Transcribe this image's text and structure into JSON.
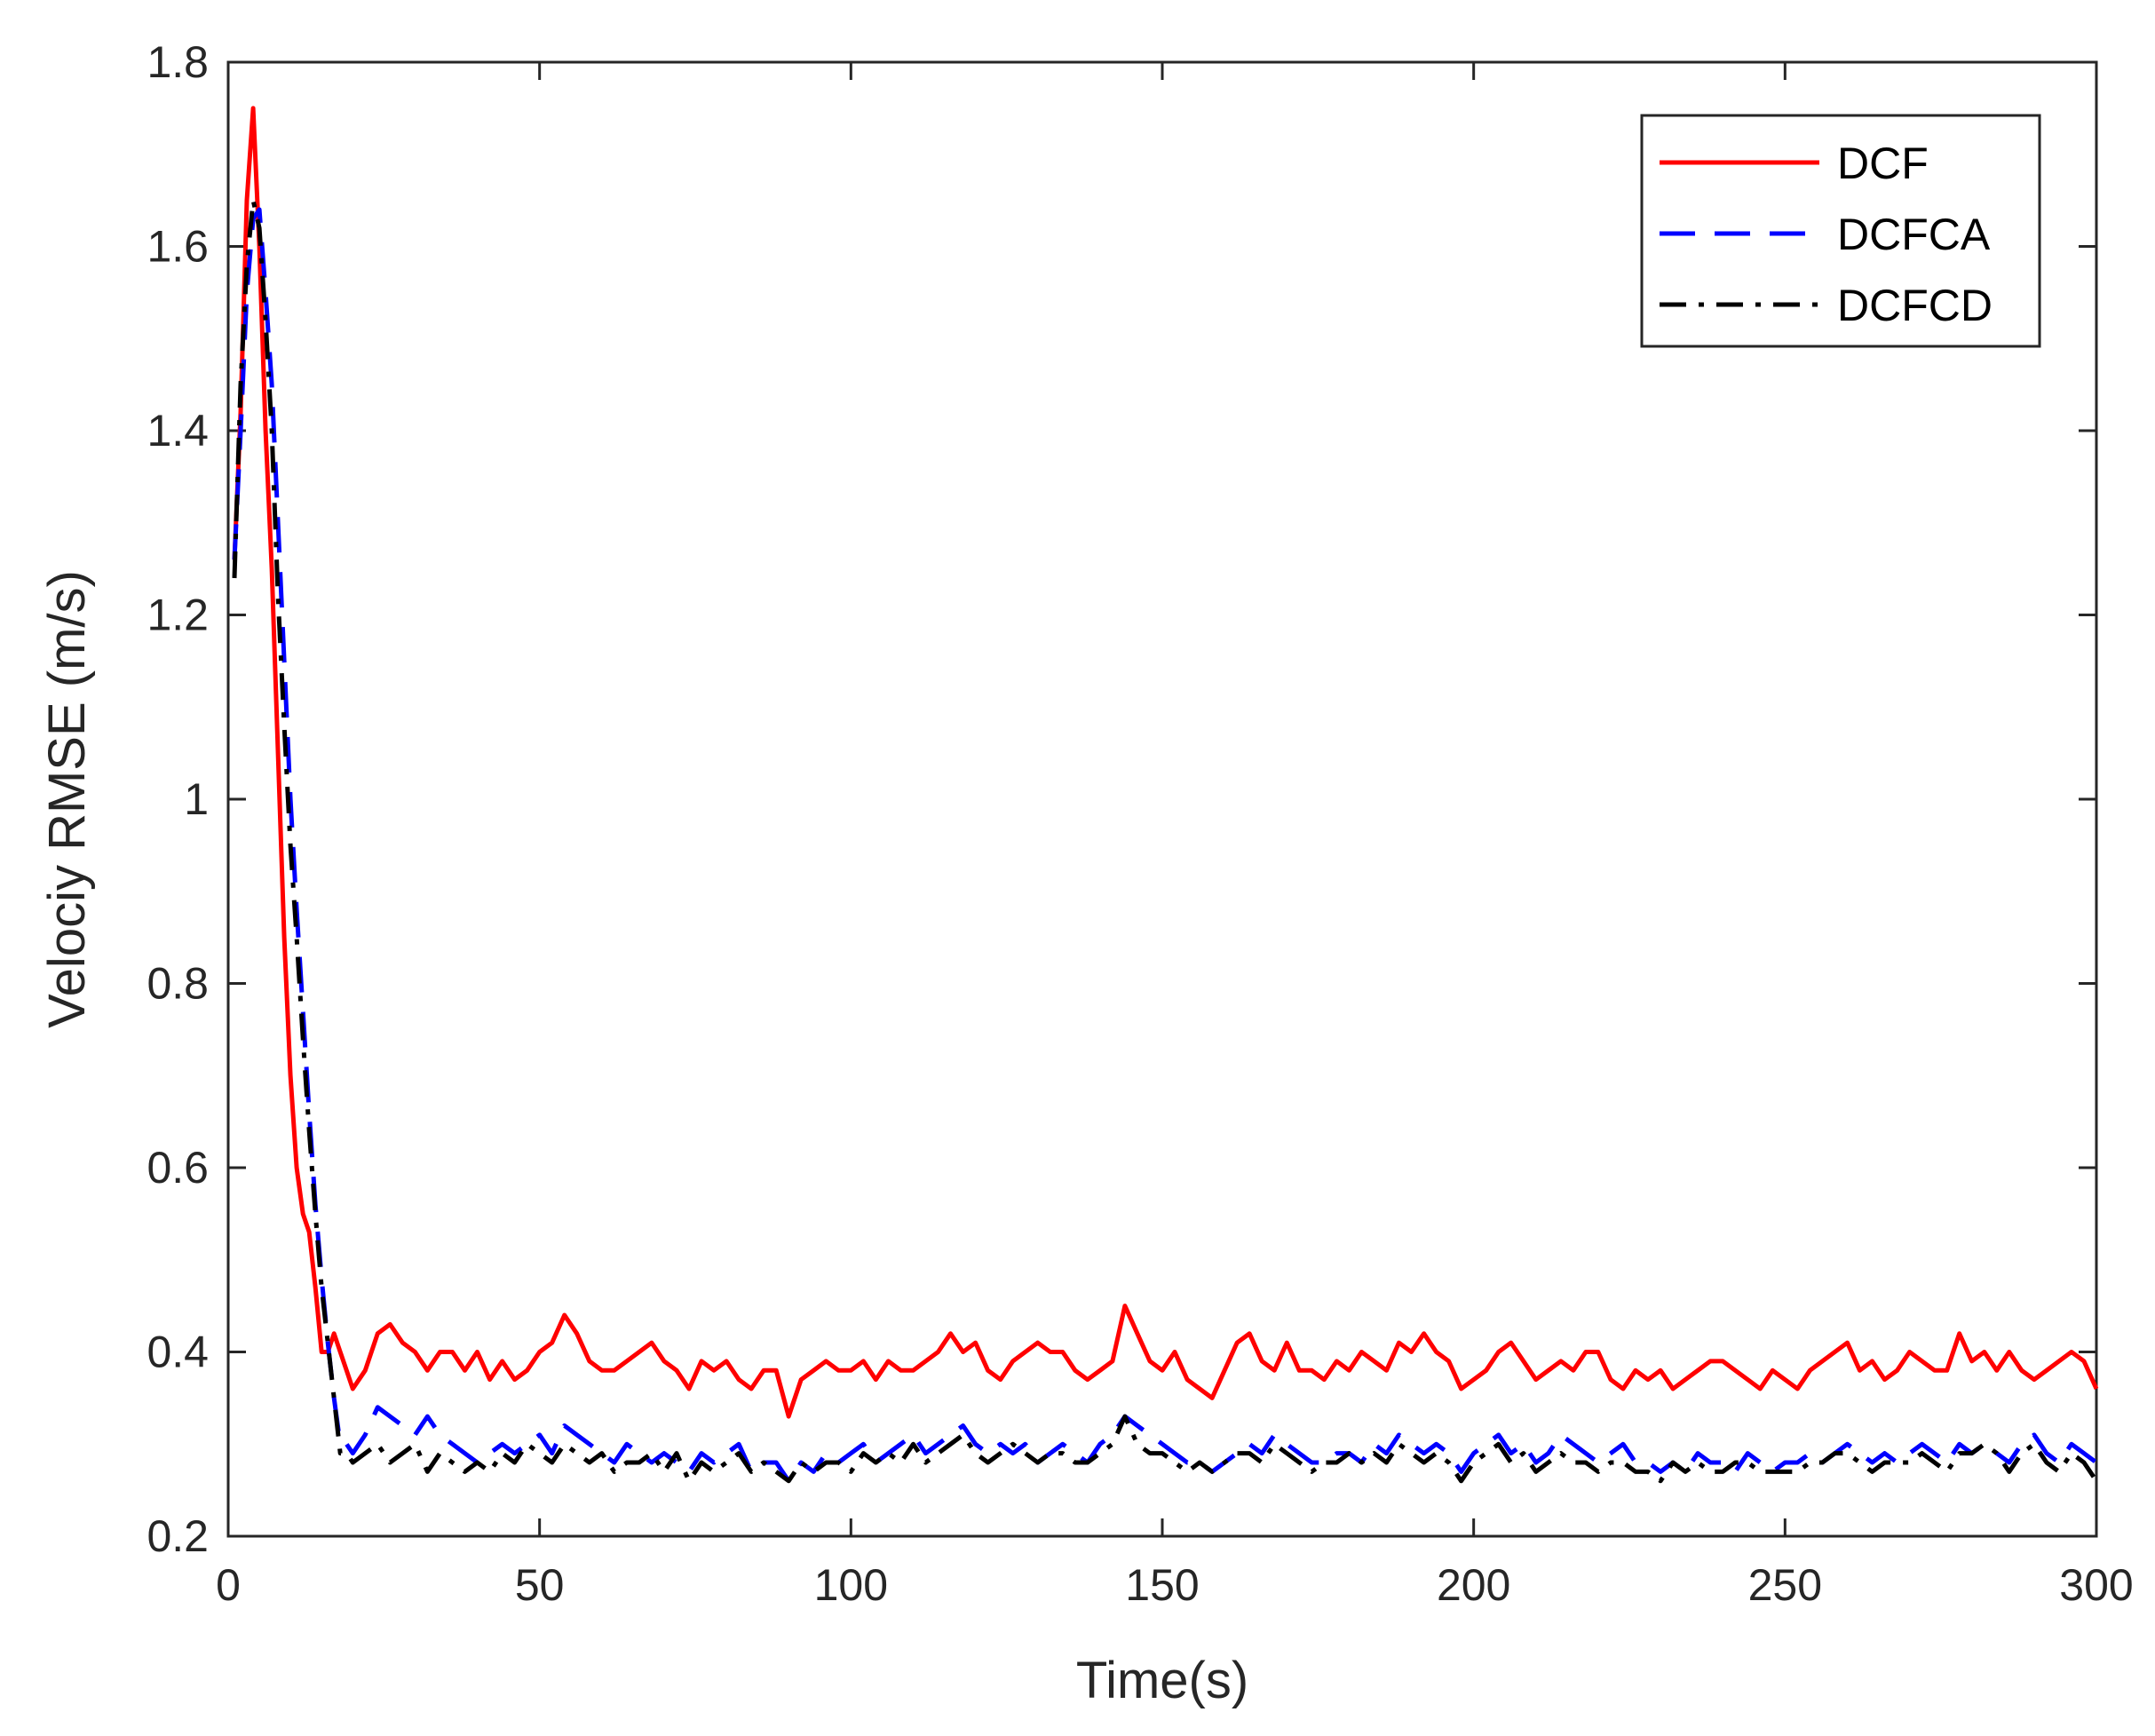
{
  "chart_data": {
    "type": "line",
    "title": "",
    "xlabel": "Time(s)",
    "ylabel": "Velociy RMSE (m/s)",
    "xlim": [
      0,
      300
    ],
    "ylim": [
      0.2,
      1.8
    ],
    "xticks": [
      0,
      50,
      100,
      150,
      200,
      250,
      300
    ],
    "xtick_labels": [
      "0",
      "50",
      "100",
      "150",
      "200",
      "250",
      "300"
    ],
    "yticks": [
      0.2,
      0.4,
      0.6,
      0.8,
      1.0,
      1.2,
      1.4,
      1.6,
      1.8
    ],
    "ytick_labels": [
      "0.2",
      "0.4",
      "0.6",
      "0.8",
      "1",
      "1.2",
      "1.4",
      "1.6",
      "1.8"
    ],
    "grid": false,
    "legend_position": "top-right",
    "series": [
      {
        "name": "DCF",
        "color": "#ff0000",
        "style": "solid",
        "x": [
          1,
          2,
          3,
          4,
          5,
          6,
          7,
          8,
          9,
          10,
          11,
          12,
          13,
          14,
          15,
          16,
          17,
          18,
          19,
          20,
          22,
          24,
          26,
          28,
          30,
          32,
          34,
          36,
          38,
          40,
          42,
          44,
          46,
          48,
          50,
          52,
          54,
          56,
          58,
          60,
          62,
          64,
          66,
          68,
          70,
          72,
          74,
          76,
          78,
          80,
          82,
          84,
          86,
          88,
          90,
          92,
          94,
          96,
          98,
          100,
          102,
          104,
          106,
          108,
          110,
          112,
          114,
          116,
          118,
          120,
          122,
          124,
          126,
          128,
          130,
          132,
          134,
          136,
          138,
          140,
          142,
          144,
          146,
          148,
          150,
          152,
          154,
          156,
          158,
          160,
          162,
          164,
          166,
          168,
          170,
          172,
          174,
          176,
          178,
          180,
          182,
          184,
          186,
          188,
          190,
          192,
          194,
          196,
          198,
          200,
          202,
          204,
          206,
          208,
          210,
          212,
          214,
          216,
          218,
          220,
          222,
          224,
          226,
          228,
          230,
          232,
          234,
          236,
          238,
          240,
          242,
          244,
          246,
          248,
          250,
          252,
          254,
          256,
          258,
          260,
          262,
          264,
          266,
          268,
          270,
          272,
          274,
          276,
          278,
          280,
          282,
          284,
          286,
          288,
          290,
          292,
          294,
          296,
          298,
          300
        ],
        "y": [
          1.26,
          1.42,
          1.65,
          1.75,
          1.6,
          1.4,
          1.25,
          1.05,
          0.85,
          0.7,
          0.6,
          0.55,
          0.53,
          0.47,
          0.4,
          0.4,
          0.42,
          0.4,
          0.38,
          0.36,
          0.38,
          0.42,
          0.43,
          0.41,
          0.4,
          0.38,
          0.4,
          0.4,
          0.38,
          0.4,
          0.37,
          0.39,
          0.37,
          0.38,
          0.4,
          0.41,
          0.44,
          0.42,
          0.39,
          0.38,
          0.38,
          0.39,
          0.4,
          0.41,
          0.39,
          0.38,
          0.36,
          0.39,
          0.38,
          0.39,
          0.37,
          0.36,
          0.38,
          0.38,
          0.33,
          0.37,
          0.38,
          0.39,
          0.38,
          0.38,
          0.39,
          0.37,
          0.39,
          0.38,
          0.38,
          0.39,
          0.4,
          0.42,
          0.4,
          0.41,
          0.38,
          0.37,
          0.39,
          0.4,
          0.41,
          0.4,
          0.4,
          0.38,
          0.37,
          0.38,
          0.39,
          0.45,
          0.42,
          0.39,
          0.38,
          0.4,
          0.37,
          0.36,
          0.35,
          0.38,
          0.41,
          0.42,
          0.39,
          0.38,
          0.41,
          0.38,
          0.38,
          0.37,
          0.39,
          0.38,
          0.4,
          0.39,
          0.38,
          0.41,
          0.4,
          0.42,
          0.4,
          0.39,
          0.36,
          0.37,
          0.38,
          0.4,
          0.41,
          0.39,
          0.37,
          0.38,
          0.39,
          0.38,
          0.4,
          0.4,
          0.37,
          0.36,
          0.38,
          0.37,
          0.38,
          0.36,
          0.37,
          0.38,
          0.39,
          0.39,
          0.38,
          0.37,
          0.36,
          0.38,
          0.37,
          0.36,
          0.38,
          0.39,
          0.4,
          0.41,
          0.38,
          0.39,
          0.37,
          0.38,
          0.4,
          0.39,
          0.38,
          0.38,
          0.42,
          0.39,
          0.4,
          0.38,
          0.4,
          0.38,
          0.37,
          0.38,
          0.39,
          0.4,
          0.39,
          0.36
        ]
      },
      {
        "name": "DCFCA",
        "color": "#0000ff",
        "style": "dashed",
        "x": [
          1,
          2,
          3,
          4,
          5,
          6,
          7,
          8,
          9,
          10,
          11,
          12,
          13,
          14,
          15,
          16,
          17,
          18,
          19,
          20,
          22,
          24,
          26,
          28,
          30,
          32,
          34,
          36,
          38,
          40,
          42,
          44,
          46,
          48,
          50,
          52,
          54,
          56,
          58,
          60,
          62,
          64,
          66,
          68,
          70,
          72,
          74,
          76,
          78,
          80,
          82,
          84,
          86,
          88,
          90,
          92,
          94,
          96,
          98,
          100,
          102,
          104,
          106,
          108,
          110,
          112,
          114,
          116,
          118,
          120,
          122,
          124,
          126,
          128,
          130,
          132,
          134,
          136,
          138,
          140,
          142,
          144,
          146,
          148,
          150,
          152,
          154,
          156,
          158,
          160,
          162,
          164,
          166,
          168,
          170,
          172,
          174,
          176,
          178,
          180,
          182,
          184,
          186,
          188,
          190,
          192,
          194,
          196,
          198,
          200,
          202,
          204,
          206,
          208,
          210,
          212,
          214,
          216,
          218,
          220,
          222,
          224,
          226,
          228,
          230,
          232,
          234,
          236,
          238,
          240,
          242,
          244,
          246,
          248,
          250,
          252,
          254,
          256,
          258,
          260,
          262,
          264,
          266,
          268,
          270,
          272,
          274,
          276,
          278,
          280,
          282,
          284,
          286,
          288,
          290,
          292,
          294,
          296,
          298,
          300
        ],
        "y": [
          1.26,
          1.4,
          1.55,
          1.63,
          1.64,
          1.55,
          1.45,
          1.3,
          1.15,
          1.0,
          0.88,
          0.77,
          0.66,
          0.56,
          0.48,
          0.41,
          0.35,
          0.3,
          0.3,
          0.29,
          0.31,
          0.34,
          0.33,
          0.32,
          0.31,
          0.33,
          0.31,
          0.3,
          0.29,
          0.28,
          0.29,
          0.3,
          0.29,
          0.3,
          0.31,
          0.29,
          0.32,
          0.31,
          0.3,
          0.29,
          0.28,
          0.3,
          0.29,
          0.28,
          0.29,
          0.28,
          0.27,
          0.29,
          0.28,
          0.29,
          0.3,
          0.27,
          0.28,
          0.28,
          0.26,
          0.28,
          0.27,
          0.29,
          0.28,
          0.29,
          0.3,
          0.28,
          0.29,
          0.3,
          0.31,
          0.29,
          0.3,
          0.31,
          0.32,
          0.3,
          0.29,
          0.3,
          0.29,
          0.3,
          0.28,
          0.29,
          0.3,
          0.29,
          0.28,
          0.3,
          0.31,
          0.33,
          0.32,
          0.31,
          0.3,
          0.29,
          0.28,
          0.28,
          0.27,
          0.28,
          0.29,
          0.3,
          0.29,
          0.31,
          0.3,
          0.29,
          0.28,
          0.28,
          0.29,
          0.29,
          0.28,
          0.3,
          0.29,
          0.31,
          0.3,
          0.29,
          0.3,
          0.29,
          0.27,
          0.29,
          0.3,
          0.31,
          0.29,
          0.3,
          0.28,
          0.29,
          0.31,
          0.3,
          0.29,
          0.28,
          0.29,
          0.3,
          0.28,
          0.28,
          0.27,
          0.28,
          0.27,
          0.29,
          0.28,
          0.28,
          0.27,
          0.29,
          0.28,
          0.27,
          0.28,
          0.28,
          0.29,
          0.28,
          0.29,
          0.3,
          0.29,
          0.28,
          0.29,
          0.28,
          0.29,
          0.3,
          0.29,
          0.28,
          0.3,
          0.29,
          0.3,
          0.29,
          0.28,
          0.3,
          0.31,
          0.29,
          0.28,
          0.3,
          0.29,
          0.28
        ]
      },
      {
        "name": "DCFCD",
        "color": "#000000",
        "style": "dashdot",
        "x": [
          1,
          2,
          3,
          4,
          5,
          6,
          7,
          8,
          9,
          10,
          11,
          12,
          13,
          14,
          15,
          16,
          17,
          18,
          19,
          20,
          22,
          24,
          26,
          28,
          30,
          32,
          34,
          36,
          38,
          40,
          42,
          44,
          46,
          48,
          50,
          52,
          54,
          56,
          58,
          60,
          62,
          64,
          66,
          68,
          70,
          72,
          74,
          76,
          78,
          80,
          82,
          84,
          86,
          88,
          90,
          92,
          94,
          96,
          98,
          100,
          102,
          104,
          106,
          108,
          110,
          112,
          114,
          116,
          118,
          120,
          122,
          124,
          126,
          128,
          130,
          132,
          134,
          136,
          138,
          140,
          142,
          144,
          146,
          148,
          150,
          152,
          154,
          156,
          158,
          160,
          162,
          164,
          166,
          168,
          170,
          172,
          174,
          176,
          178,
          180,
          182,
          184,
          186,
          188,
          190,
          192,
          194,
          196,
          198,
          200,
          202,
          204,
          206,
          208,
          210,
          212,
          214,
          216,
          218,
          220,
          222,
          224,
          226,
          228,
          230,
          232,
          234,
          236,
          238,
          240,
          242,
          244,
          246,
          248,
          250,
          252,
          254,
          256,
          258,
          260,
          262,
          264,
          266,
          268,
          270,
          272,
          274,
          276,
          278,
          280,
          282,
          284,
          286,
          288,
          290,
          292,
          294,
          296,
          298,
          300
        ],
        "y": [
          1.24,
          1.45,
          1.58,
          1.65,
          1.62,
          1.52,
          1.4,
          1.22,
          1.08,
          0.95,
          0.85,
          0.74,
          0.64,
          0.55,
          0.47,
          0.41,
          0.35,
          0.29,
          0.29,
          0.28,
          0.29,
          0.3,
          0.28,
          0.29,
          0.3,
          0.27,
          0.29,
          0.28,
          0.27,
          0.28,
          0.27,
          0.29,
          0.28,
          0.3,
          0.29,
          0.28,
          0.3,
          0.29,
          0.28,
          0.29,
          0.27,
          0.28,
          0.28,
          0.29,
          0.27,
          0.29,
          0.26,
          0.28,
          0.27,
          0.28,
          0.29,
          0.27,
          0.28,
          0.27,
          0.26,
          0.28,
          0.27,
          0.28,
          0.28,
          0.27,
          0.29,
          0.28,
          0.29,
          0.28,
          0.3,
          0.28,
          0.29,
          0.3,
          0.31,
          0.29,
          0.28,
          0.29,
          0.3,
          0.29,
          0.28,
          0.29,
          0.29,
          0.28,
          0.28,
          0.29,
          0.3,
          0.33,
          0.3,
          0.29,
          0.29,
          0.28,
          0.27,
          0.28,
          0.27,
          0.28,
          0.29,
          0.29,
          0.28,
          0.3,
          0.29,
          0.28,
          0.27,
          0.28,
          0.28,
          0.29,
          0.28,
          0.29,
          0.28,
          0.3,
          0.29,
          0.28,
          0.29,
          0.28,
          0.26,
          0.28,
          0.29,
          0.3,
          0.28,
          0.29,
          0.27,
          0.28,
          0.29,
          0.28,
          0.28,
          0.27,
          0.28,
          0.28,
          0.27,
          0.27,
          0.26,
          0.28,
          0.27,
          0.28,
          0.27,
          0.27,
          0.28,
          0.28,
          0.27,
          0.27,
          0.27,
          0.27,
          0.28,
          0.28,
          0.29,
          0.29,
          0.28,
          0.27,
          0.28,
          0.28,
          0.28,
          0.29,
          0.28,
          0.27,
          0.29,
          0.29,
          0.3,
          0.29,
          0.27,
          0.29,
          0.3,
          0.28,
          0.27,
          0.29,
          0.28,
          0.26
        ]
      }
    ]
  }
}
